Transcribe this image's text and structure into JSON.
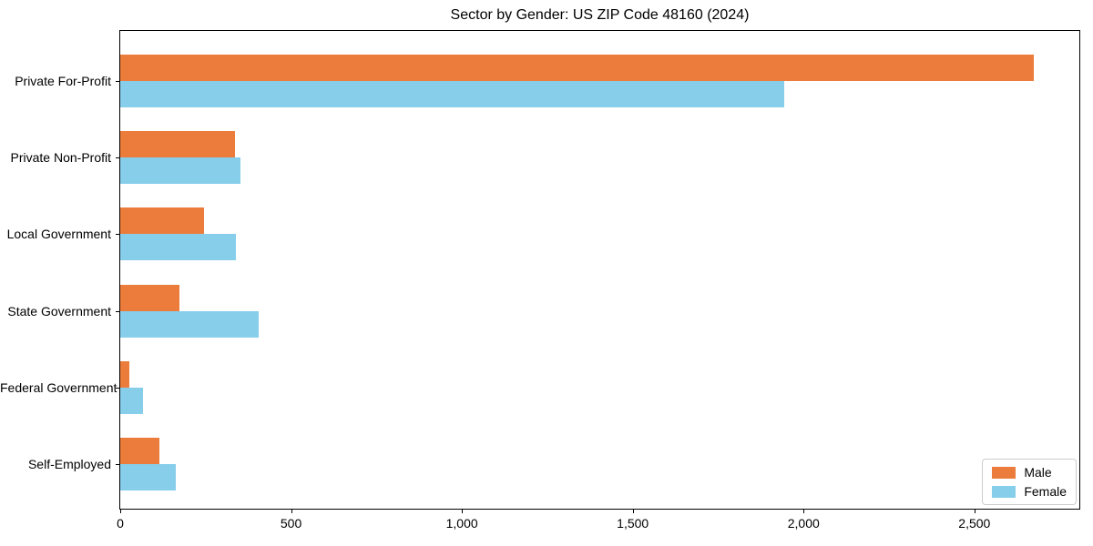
{
  "chart_data": {
    "type": "bar",
    "orientation": "horizontal",
    "title": "Sector by Gender: US ZIP Code 48160 (2024)",
    "categories": [
      "Private For-Profit",
      "Private Non-Profit",
      "Local Government",
      "State Government",
      "Federal Government",
      "Self-Employed"
    ],
    "series": [
      {
        "name": "Male",
        "color": "#EC7C3B",
        "values": [
          2673,
          335,
          244,
          173,
          26,
          114
        ]
      },
      {
        "name": "Female",
        "color": "#87CEEB",
        "values": [
          1944,
          352,
          339,
          405,
          66,
          162
        ]
      }
    ],
    "xlabel": "",
    "ylabel": "",
    "xlim": [
      0,
      2807
    ],
    "x_ticks": [
      0,
      500,
      1000,
      1500,
      2000,
      2500
    ],
    "x_tick_labels": [
      "0",
      "500",
      "1,000",
      "1,500",
      "2,000",
      "2,500"
    ],
    "grid": false,
    "legend_position": "lower right",
    "background_color": "#ffffff",
    "spine_color": "#000000"
  }
}
